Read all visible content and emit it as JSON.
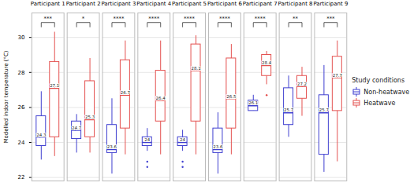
{
  "chart_data": {
    "type": "boxplot",
    "y_label": "Modelled indoor temperature (°C)",
    "ylim": [
      21.8,
      31.4
    ],
    "yticks": [
      22,
      24,
      26,
      28,
      30
    ],
    "grid": true,
    "data_labels": true,
    "legend": "right",
    "legend_title": "Study conditions",
    "categories": [
      "Participant 1",
      "Participant 2",
      "Participant 3",
      "Participant 4",
      "Participant 5",
      "Participant 6",
      "Participant 7",
      "Participant 8",
      "Participant 9"
    ],
    "significance": [
      "***",
      "*",
      "****",
      "****",
      "****",
      "****",
      "****",
      "**",
      "***"
    ],
    "series": [
      {
        "name": "Non-heatwave",
        "color": "#3f3fd0",
        "whisker_low": [
          23.0,
          23.4,
          22.2,
          23.5,
          23.5,
          22.2,
          25.8,
          24.3,
          22.3
        ],
        "q1": [
          23.8,
          24.2,
          23.4,
          23.8,
          23.8,
          23.4,
          25.8,
          25.0,
          23.3
        ],
        "median": [
          24.3,
          24.7,
          23.6,
          24,
          24,
          23.6,
          26.1,
          25.7,
          25.7
        ],
        "q3": [
          25.5,
          25.2,
          25.0,
          24.3,
          24.3,
          24.8,
          26.4,
          27.1,
          26.7
        ],
        "whisker_high": [
          26.9,
          25.6,
          26.5,
          24.8,
          24.7,
          25.7,
          26.7,
          27.8,
          28.4
        ],
        "outliers": [
          [],
          [],
          [],
          [
            22.9,
            22.6
          ],
          [
            22.9,
            22.6
          ],
          [],
          [],
          [],
          []
        ]
      },
      {
        "name": "Heatwave",
        "color": "#e4504f",
        "whisker_low": [
          23.2,
          23.4,
          23.3,
          23.3,
          23.3,
          23.3,
          27.3,
          25.5,
          22.9
        ],
        "q1": [
          24.3,
          24.3,
          24.8,
          25.2,
          25.2,
          24.8,
          27.8,
          26.5,
          25.8
        ],
        "median": [
          27.1,
          25.3,
          26.7,
          26.4,
          28.1,
          26.5,
          28.4,
          27.2,
          27.7
        ],
        "q3": [
          28.6,
          27.5,
          28.7,
          28.1,
          29.6,
          28.8,
          29.0,
          27.8,
          28.9
        ],
        "whisker_high": [
          30.3,
          28.8,
          29.8,
          29.8,
          30.1,
          29.6,
          29.2,
          28.3,
          29.8
        ],
        "outliers": [
          [],
          [],
          [],
          [],
          [],
          [],
          [
            26.7
          ],
          [],
          []
        ]
      }
    ]
  }
}
